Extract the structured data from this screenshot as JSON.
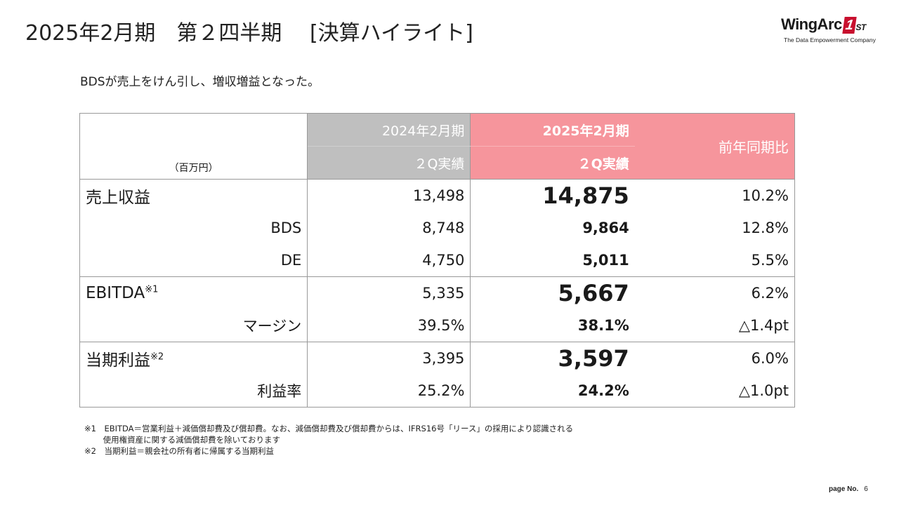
{
  "title": "2025年2月期　第２四半期　 [決算ハイライト]",
  "logo": {
    "text_main": "WingArc",
    "text_mark": "1",
    "text_sup": "ST",
    "tagline": "The Data Empowerment Company",
    "brand_color": "#c8102e"
  },
  "subtitle": "BDSが売上をけん引し、増収増益となった。",
  "table": {
    "unit": "（百万円）",
    "header": {
      "prev_period": "2024年2月期",
      "prev_sub": "２Q実績",
      "cur_period": "2025年2月期",
      "cur_sub": "２Q実績",
      "yoy": "前年同期比"
    },
    "header_colors": {
      "prev": "#bfbfbf",
      "current": "#f6959c"
    },
    "rows": [
      {
        "label": "売上収益",
        "prev": "13,498",
        "cur": "14,875",
        "yoy": "10.2%"
      },
      {
        "label": "BDS",
        "prev": "8,748",
        "cur": "9,864",
        "yoy": "12.8%"
      },
      {
        "label": "DE",
        "prev": "4,750",
        "cur": "5,011",
        "yoy": "5.5%"
      },
      {
        "label": "EBITDA",
        "note": "※1",
        "prev": "5,335",
        "cur": "5,667",
        "yoy": "6.2%"
      },
      {
        "label": "マージン",
        "prev": "39.5%",
        "cur": "38.1%",
        "yoy": "△1.4pt"
      },
      {
        "label": "当期利益",
        "note": "※2",
        "prev": "3,395",
        "cur": "3,597",
        "yoy": "6.0%"
      },
      {
        "label": "利益率",
        "prev": "25.2%",
        "cur": "24.2%",
        "yoy": "△1.0pt"
      }
    ]
  },
  "notes": [
    "※1　EBITDA＝営業利益＋減価償却費及び償却費。なお、減価償却費及び償却費からは、IFRS16号「リース」の採用により認識される",
    "　　 使用権資産に関する減価償却費を除いております",
    "※2　当期利益＝親会社の所有者に帰属する当期利益"
  ],
  "page": {
    "label": "page No.",
    "number": "6"
  }
}
